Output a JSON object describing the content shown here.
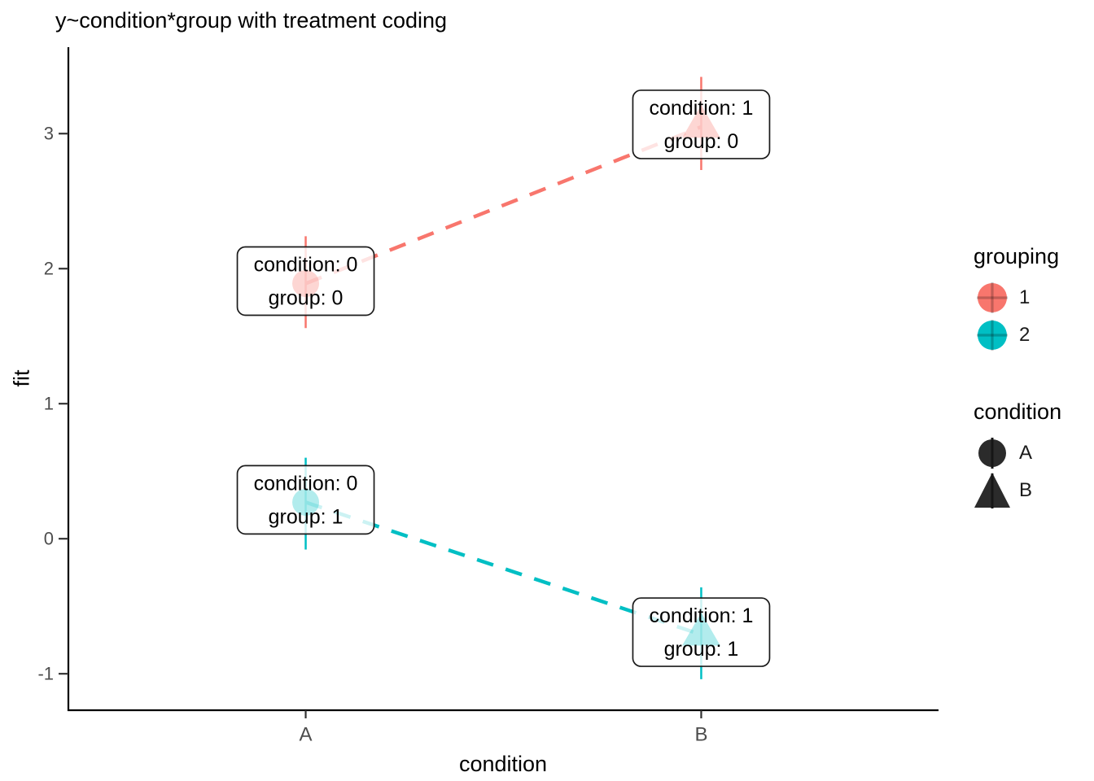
{
  "chart_data": {
    "type": "line",
    "title": "y~condition*group with treatment coding",
    "xlabel": "condition",
    "ylabel": "fit",
    "categories": [
      "A",
      "B"
    ],
    "y_ticks": [
      3,
      2,
      1,
      0,
      -1
    ],
    "ylim": [
      -1.27,
      3.64
    ],
    "grid": false,
    "legend_position": "right",
    "line_style": "dashed",
    "point_alpha": 0.3,
    "series": [
      {
        "name": "1",
        "color": "#F8766D",
        "points": [
          {
            "x": "A",
            "shape": "circle",
            "fit": 1.89,
            "ci_low": 1.56,
            "ci_high": 2.24,
            "label": [
              "condition: 0",
              "group: 0"
            ]
          },
          {
            "x": "B",
            "shape": "triangle",
            "fit": 3.05,
            "ci_low": 2.73,
            "ci_high": 3.42,
            "label": [
              "condition: 1",
              "group: 0"
            ]
          }
        ]
      },
      {
        "name": "2",
        "color": "#00BFC4",
        "points": [
          {
            "x": "A",
            "shape": "circle",
            "fit": 0.27,
            "ci_low": -0.08,
            "ci_high": 0.6,
            "label": [
              "condition: 0",
              "group: 1"
            ]
          },
          {
            "x": "B",
            "shape": "triangle",
            "fit": -0.71,
            "ci_low": -1.04,
            "ci_high": -0.36,
            "label": [
              "condition: 1",
              "group: 1"
            ]
          }
        ]
      }
    ],
    "legends": [
      {
        "title": "grouping",
        "items": [
          {
            "label": "1",
            "swatch": "circle-cross",
            "color": "#F8766D"
          },
          {
            "label": "2",
            "swatch": "circle-cross",
            "color": "#00BFC4"
          }
        ]
      },
      {
        "title": "condition",
        "items": [
          {
            "label": "A",
            "swatch": "circle-line",
            "color": "#2b2b2b"
          },
          {
            "label": "B",
            "swatch": "triangle-line",
            "color": "#2b2b2b"
          }
        ]
      }
    ]
  },
  "colors": {
    "background": "#ffffff",
    "axis_line": "#000000",
    "tick_mark": "#333333",
    "axis_text": "#4d4d4d",
    "label_box_border": "#1a1a1a",
    "label_box_fill": "rgba(255,255,255,0.8)"
  }
}
